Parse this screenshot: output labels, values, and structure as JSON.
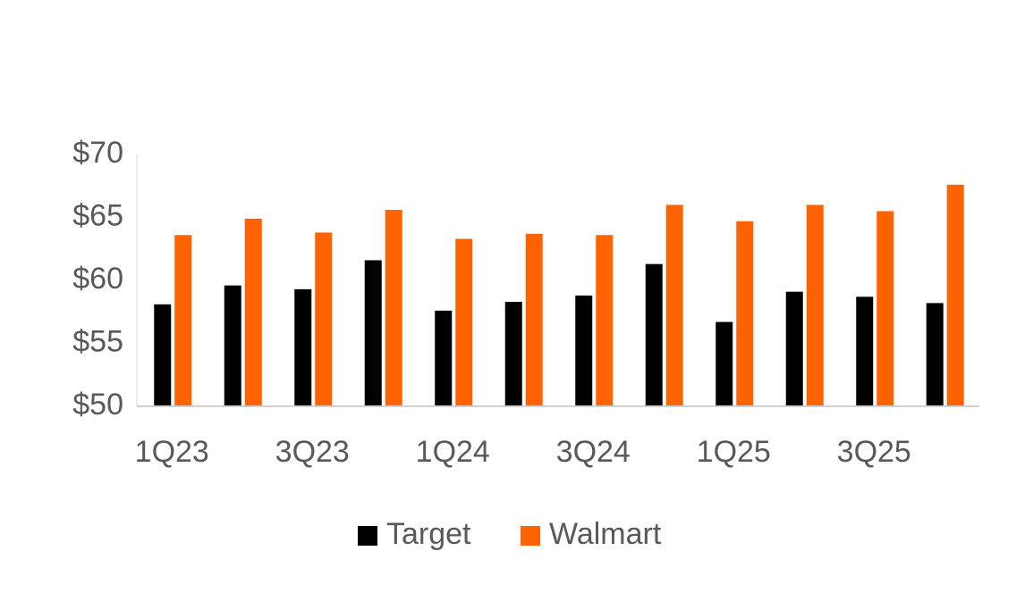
{
  "chart_data": {
    "type": "bar",
    "categories": [
      "1Q23",
      null,
      "3Q23",
      null,
      "1Q24",
      null,
      "3Q24",
      null,
      "1Q25",
      null,
      "3Q25",
      null
    ],
    "series": [
      {
        "name": "Target",
        "color": "#000000",
        "values": [
          58.1,
          59.6,
          59.3,
          61.6,
          57.6,
          58.3,
          58.8,
          61.3,
          56.7,
          59.1,
          58.7,
          58.2
        ]
      },
      {
        "name": "Walmart",
        "color": "#ff6200",
        "values": [
          63.6,
          64.9,
          63.8,
          65.6,
          63.3,
          63.7,
          63.6,
          66.0,
          64.7,
          66.0,
          65.5,
          67.6
        ]
      }
    ],
    "ylim": [
      50,
      70
    ],
    "yticks": [
      {
        "value": 50,
        "label": "$50"
      },
      {
        "value": 55,
        "label": "$55"
      },
      {
        "value": 60,
        "label": "$60"
      },
      {
        "value": 65,
        "label": "$65"
      },
      {
        "value": 70,
        "label": "$70"
      }
    ],
    "grid": false,
    "legend": "bottom"
  }
}
